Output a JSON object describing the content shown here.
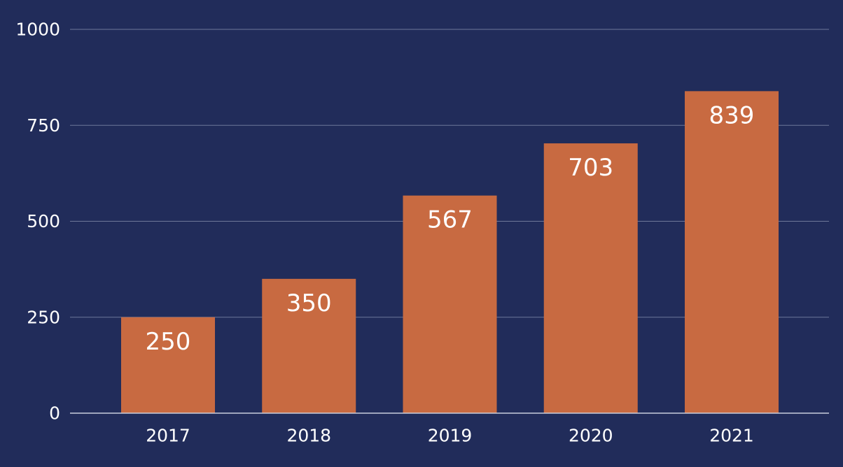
{
  "colors": {
    "background": "#212c5a",
    "bar": "#c86a41",
    "gridline": "#6e7899",
    "axis_line": "#c9cddc",
    "text": "#ffffff"
  },
  "chart_data": {
    "type": "bar",
    "title": "",
    "xlabel": "",
    "ylabel": "",
    "categories": [
      "2017",
      "2018",
      "2019",
      "2020",
      "2021"
    ],
    "values": [
      250,
      350,
      567,
      703,
      839
    ],
    "data_labels": [
      "250",
      "350",
      "567",
      "703",
      "839"
    ],
    "ylim": [
      0,
      1000
    ],
    "y_ticks": [
      0,
      250,
      500,
      750,
      1000
    ],
    "y_tick_labels": [
      "0",
      "250",
      "500",
      "750",
      "1000"
    ],
    "grid": true,
    "legend": "none"
  }
}
